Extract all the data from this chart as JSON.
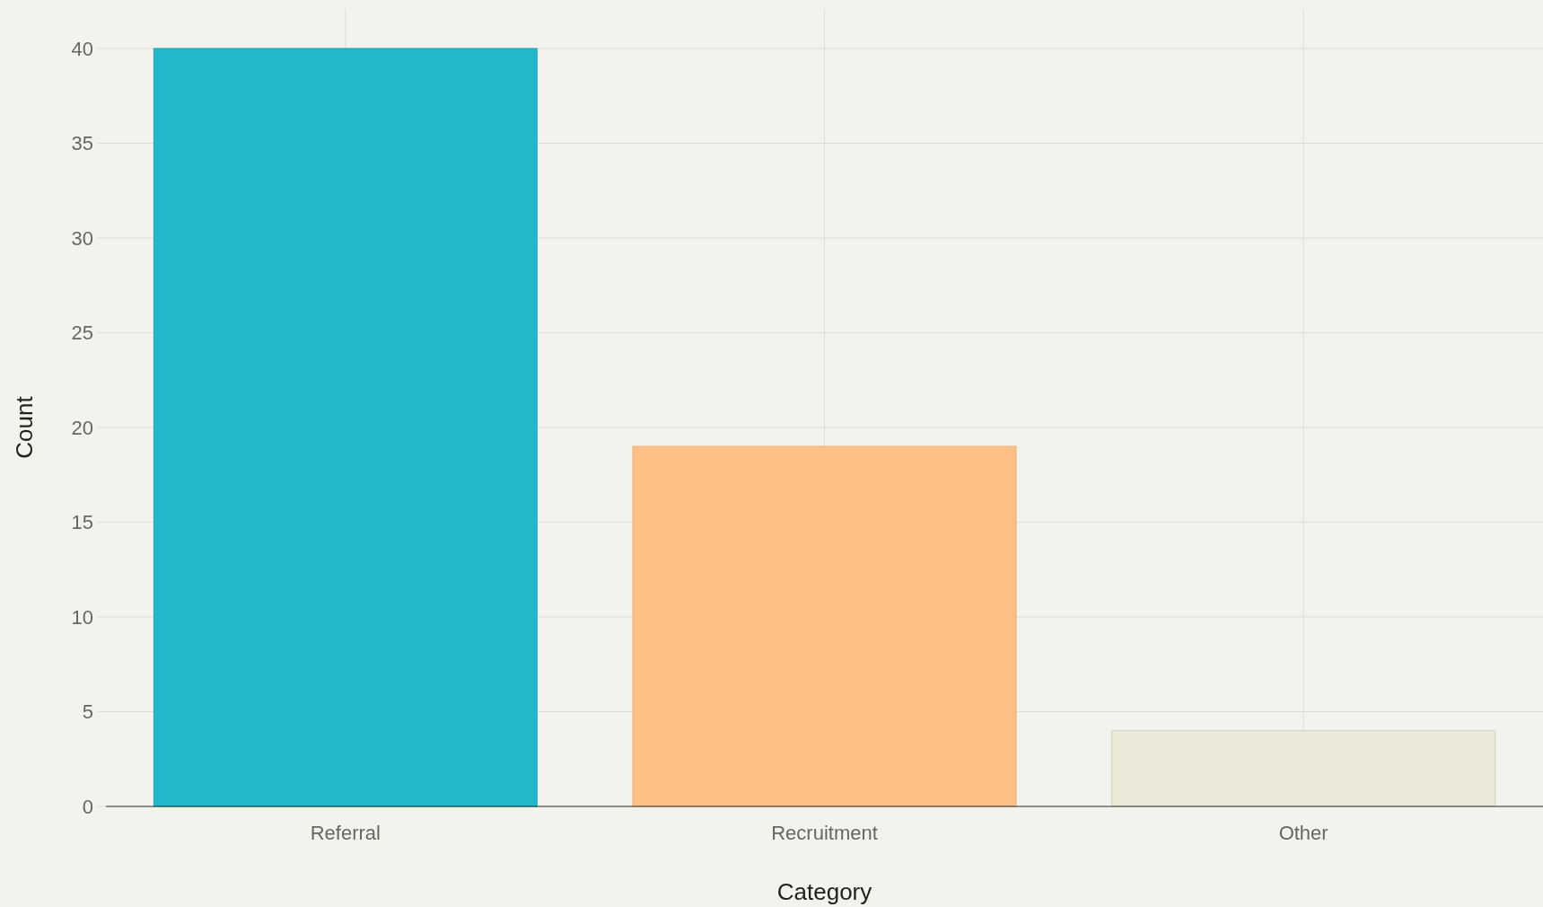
{
  "chart_data": {
    "type": "bar",
    "xlabel": "Category",
    "ylabel": "Count",
    "categories": [
      "Referral",
      "Recruitment",
      "Other"
    ],
    "values": [
      40,
      19,
      4
    ],
    "colors": [
      "#21b8cc",
      "#ffc086",
      "#ebead8"
    ],
    "ylim": [
      0,
      40
    ],
    "yticks": [
      0,
      5,
      10,
      15,
      20,
      25,
      30,
      35,
      40
    ],
    "grid": true
  }
}
